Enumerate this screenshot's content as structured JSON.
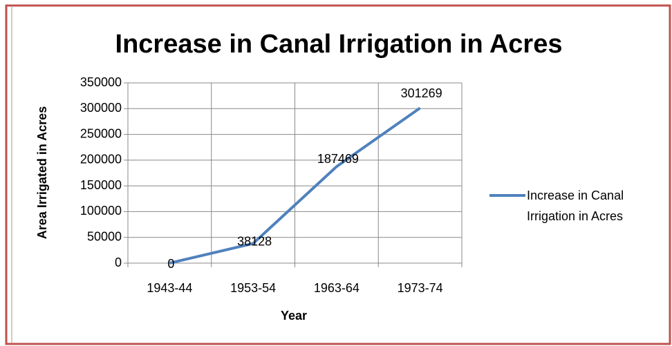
{
  "chart_data": {
    "type": "line",
    "title": "Increase in Canal Irrigation in Acres",
    "x_label": "Year",
    "y_label": "Area Irrigated in Acres",
    "categories": [
      "1943-44",
      "1953-54",
      "1963-64",
      "1973-74"
    ],
    "series": [
      {
        "name": "Increase in Canal Irrigation in Acres",
        "color": "#4f81bd",
        "values": [
          0,
          38128,
          187469,
          301269
        ]
      }
    ],
    "ylim": [
      0,
      350000
    ],
    "yticks": [
      0,
      50000,
      100000,
      150000,
      200000,
      250000,
      300000,
      350000
    ],
    "grid": true,
    "legend": "right"
  }
}
